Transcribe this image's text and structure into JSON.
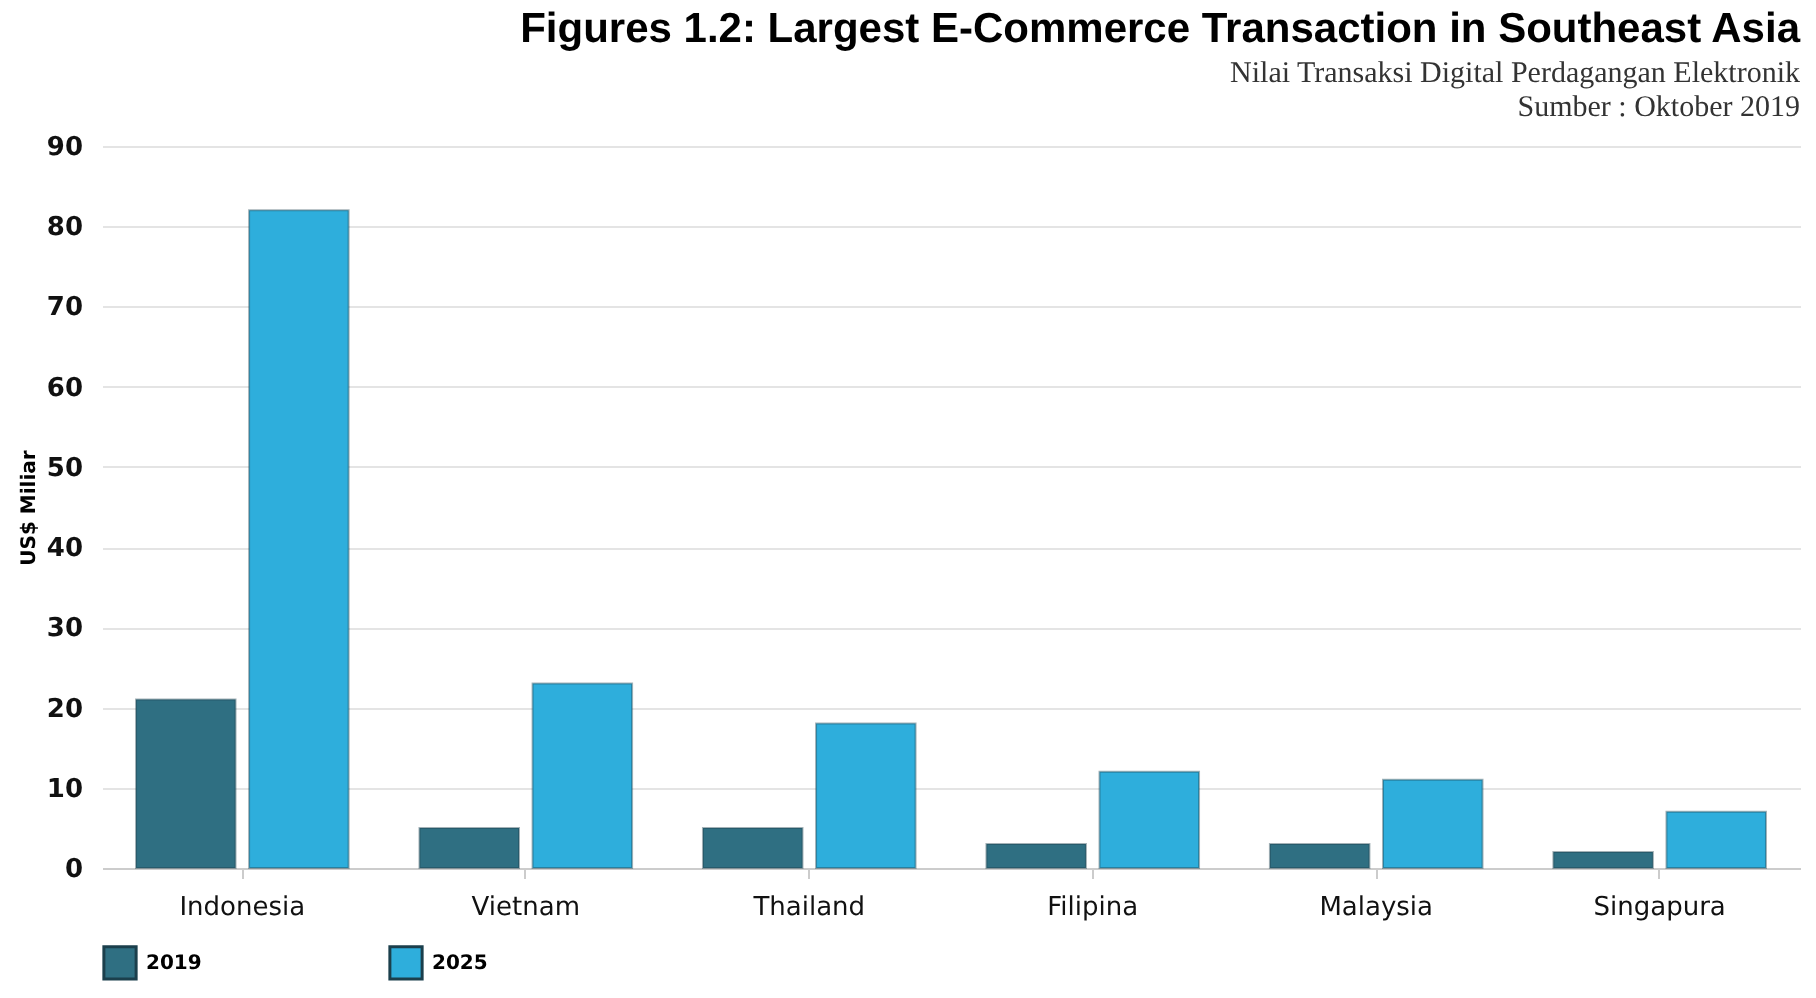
{
  "chart_data": {
    "type": "bar",
    "title": "Figures 1.2: Largest E-Commerce Transaction in Southeast Asia",
    "subtitle": "Nilai Transaksi Digital Perdagangan Elektronik",
    "annotations": [
      "Sumber : Oktober 2019"
    ],
    "ylabel": "US$ Miliar",
    "categories": [
      "Indonesia",
      "Vietnam",
      "Thailand",
      "Filipina",
      "Malaysia",
      "Singapura"
    ],
    "series": [
      {
        "name": "2019",
        "color": "#2f6f82",
        "values": [
          21,
          5,
          5,
          3,
          3,
          2
        ]
      },
      {
        "name": "2025",
        "color": "#2eaedc",
        "values": [
          82,
          23,
          18,
          12,
          11,
          7
        ]
      }
    ],
    "ylim": [
      0,
      90
    ],
    "yticks": [
      0,
      10,
      20,
      30,
      40,
      50,
      60,
      70,
      80,
      90
    ],
    "grid": "y",
    "legend": "bottom"
  }
}
